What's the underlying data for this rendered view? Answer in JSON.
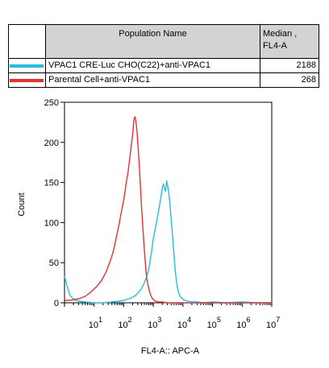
{
  "legend": {
    "header_name": "Population Name",
    "header_median_line1": "Median ,",
    "header_median_line2": "FL4-A",
    "rows": [
      {
        "name": "VPAC1 CRE-Luc CHO(C22)+anti-VPAC1",
        "median": "2188",
        "color": "#20c0e0"
      },
      {
        "name": "Parental Cell+anti-VPAC1",
        "median": "268",
        "color": "#e83030"
      }
    ]
  },
  "chart_data": {
    "type": "line",
    "xlabel": "FL4-A:: APC-A",
    "ylabel": "Count",
    "x_scale": "log",
    "xlim": [
      1,
      10000000
    ],
    "ylim": [
      0,
      250
    ],
    "yticks": [
      0,
      50,
      100,
      150,
      200,
      250
    ],
    "xticks": [
      {
        "base": "10",
        "exp": "1"
      },
      {
        "base": "10",
        "exp": "2"
      },
      {
        "base": "10",
        "exp": "3"
      },
      {
        "base": "10",
        "exp": "4"
      },
      {
        "base": "10",
        "exp": "5"
      },
      {
        "base": "10",
        "exp": "6"
      },
      {
        "base": "10",
        "exp": "7"
      }
    ],
    "series": [
      {
        "name": "VPAC1 CRE-Luc CHO(C22)+anti-VPAC1",
        "color": "#20c0e0",
        "x": [
          1,
          1.2,
          1.5,
          2,
          3,
          5,
          10,
          20,
          40,
          70,
          100,
          150,
          200,
          250,
          300,
          400,
          500,
          600,
          700,
          800,
          900,
          1000,
          1100,
          1200,
          1400,
          1600,
          1800,
          2000,
          2200,
          2400,
          2600,
          2800,
          3000,
          3300,
          3600,
          4000,
          4500,
          5000,
          5500,
          6000,
          6500,
          7000,
          8000,
          9000,
          10000,
          12000,
          15000,
          20000,
          30000,
          50000,
          100000,
          300000,
          1000000,
          3000000,
          10000000
        ],
        "y": [
          33,
          22,
          10,
          4,
          2,
          1,
          0,
          0,
          1,
          2,
          3,
          5,
          7,
          9,
          12,
          18,
          25,
          33,
          42,
          55,
          68,
          80,
          88,
          95,
          108,
          120,
          132,
          143,
          148,
          142,
          139,
          152,
          147,
          138,
          125,
          105,
          82,
          60,
          40,
          28,
          19,
          14,
          8,
          6,
          4,
          3,
          2,
          1,
          1,
          0,
          1,
          0,
          1,
          0,
          0
        ]
      },
      {
        "name": "Parental Cell+anti-VPAC1",
        "color": "#e83030",
        "x": [
          1,
          1.5,
          2,
          3,
          5,
          8,
          12,
          18,
          25,
          35,
          45,
          55,
          70,
          85,
          100,
          120,
          140,
          160,
          180,
          200,
          220,
          240,
          260,
          280,
          300,
          330,
          360,
          400,
          450,
          500,
          550,
          600,
          700,
          800,
          900,
          1000,
          1200,
          1500,
          2000,
          3000,
          5000,
          10000,
          100000,
          10000000
        ],
        "y": [
          3,
          3,
          4,
          5,
          8,
          14,
          20,
          28,
          38,
          52,
          65,
          80,
          98,
          115,
          128,
          148,
          163,
          180,
          196,
          210,
          228,
          232,
          225,
          215,
          200,
          175,
          150,
          120,
          90,
          65,
          45,
          30,
          18,
          10,
          6,
          4,
          2,
          1,
          1,
          0,
          0,
          0,
          0,
          0
        ]
      }
    ]
  }
}
